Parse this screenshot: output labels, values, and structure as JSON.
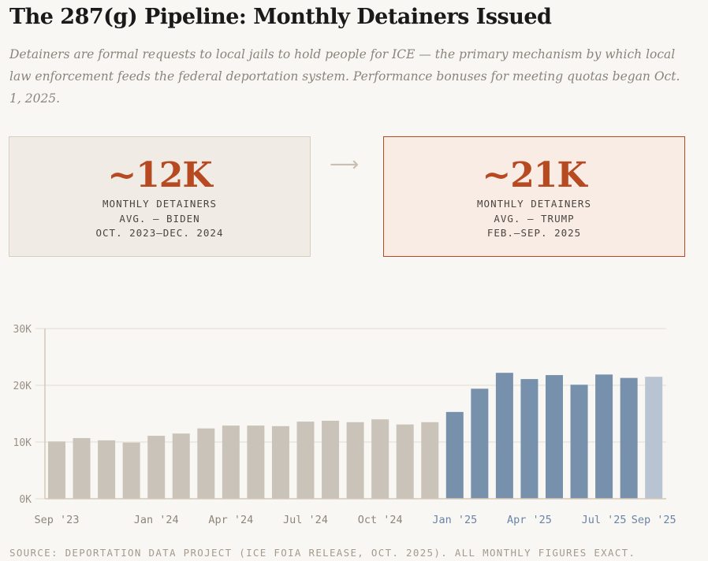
{
  "header": {
    "title": "The 287(g) Pipeline: Monthly Detainers Issued",
    "subtitle": "Detainers are formal requests to local jails to hold people for ICE — the primary mechanism by which local law enforcement feeds the federal deportation system. Performance bonuses for meeting quotas began Oct. 1, 2025."
  },
  "cards": [
    {
      "value": "~12K",
      "line1": "MONTHLY DETAINERS",
      "line2": "AVG. — BIDEN",
      "line3": "OCT. 2023–DEC. 2024"
    },
    {
      "value": "~21K",
      "line1": "MONTHLY DETAINERS",
      "line2": "AVG. — TRUMP",
      "line3": "FEB.–SEP. 2025"
    }
  ],
  "arrow": "⟶",
  "chart_data": {
    "type": "bar",
    "title": "Monthly Detainers Issued",
    "xlabel": "",
    "ylabel": "",
    "ylim": [
      0,
      30000
    ],
    "yticks": [
      {
        "v": 0,
        "label": "0K"
      },
      {
        "v": 10000,
        "label": "10K"
      },
      {
        "v": 20000,
        "label": "20K"
      },
      {
        "v": 30000,
        "label": "30K"
      }
    ],
    "categories": [
      "Sep '23",
      "Oct '23",
      "Nov '23",
      "Dec '23",
      "Jan '24",
      "Feb '24",
      "Mar '24",
      "Apr '24",
      "May '24",
      "Jun '24",
      "Jul '24",
      "Aug '24",
      "Sep '24",
      "Oct '24",
      "Nov '24",
      "Dec '24",
      "Jan '25",
      "Feb '25",
      "Mar '25",
      "Apr '25",
      "May '25",
      "Jun '25",
      "Jul '25",
      "Aug '25",
      "Sep '25"
    ],
    "values": [
      10100,
      10700,
      10300,
      9900,
      11100,
      11500,
      12400,
      12900,
      12900,
      12800,
      13600,
      13750,
      13500,
      14000,
      13100,
      13500,
      15300,
      19400,
      22200,
      21100,
      21800,
      20100,
      21900,
      21300,
      21500
    ],
    "period": [
      "biden",
      "biden",
      "biden",
      "biden",
      "biden",
      "biden",
      "biden",
      "biden",
      "biden",
      "biden",
      "biden",
      "biden",
      "biden",
      "biden",
      "biden",
      "biden",
      "trump",
      "trump",
      "trump",
      "trump",
      "trump",
      "trump",
      "trump",
      "trump",
      "partial"
    ],
    "xticks": [
      {
        "i": 0,
        "label": "Sep '23"
      },
      {
        "i": 4,
        "label": "Jan '24"
      },
      {
        "i": 7,
        "label": "Apr '24"
      },
      {
        "i": 10,
        "label": "Jul '24"
      },
      {
        "i": 13,
        "label": "Oct '24"
      },
      {
        "i": 16,
        "label": "Jan '25"
      },
      {
        "i": 19,
        "label": "Apr '25"
      },
      {
        "i": 22,
        "label": "Jul '25"
      },
      {
        "i": 24,
        "label": "Sep '25"
      }
    ],
    "colors": {
      "biden": "#cac3b9",
      "trump": "#7791ad",
      "partial": "#b8c4d2",
      "tick_biden": "#8e857a",
      "tick_trump": "#6a84a6"
    },
    "grid": true
  },
  "footer": {
    "source": "SOURCE: DEPORTATION DATA PROJECT (ICE FOIA RELEASE, OCT. 2025). ALL MONTHLY FIGURES EXACT."
  }
}
